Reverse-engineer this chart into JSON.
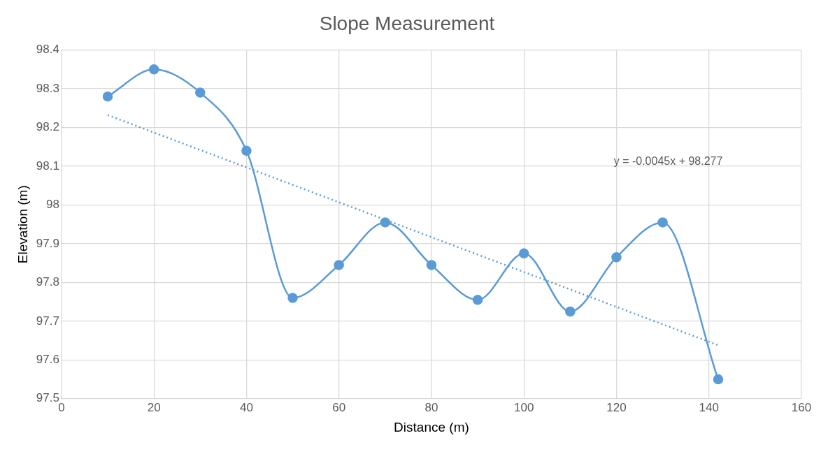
{
  "chart_data": {
    "type": "line",
    "title": "Slope Measurement",
    "xlabel": "Distance (m)",
    "ylabel": "Elevation (m)",
    "xlim": [
      0,
      160
    ],
    "xticks": [
      0,
      20,
      40,
      60,
      80,
      100,
      120,
      140,
      160
    ],
    "ylim": [
      97.5,
      98.4
    ],
    "yticks": [
      {
        "value": 97.5,
        "label": "97.5"
      },
      {
        "value": 97.6,
        "label": "97.6"
      },
      {
        "value": 97.7,
        "label": "97.7"
      },
      {
        "value": 97.8,
        "label": "97.8"
      },
      {
        "value": 97.9,
        "label": "97.9"
      },
      {
        "value": 98,
        "label": "98"
      },
      {
        "value": 98.1,
        "label": "98.1"
      },
      {
        "value": 98.2,
        "label": "98.2"
      },
      {
        "value": 98.3,
        "label": "98.3"
      },
      {
        "value": 98.4,
        "label": "98.4"
      }
    ],
    "grid": true,
    "legend": false,
    "series": [
      {
        "type": "line",
        "color": "#5b9bd5",
        "marker": "circle",
        "line_style": "solid",
        "x": [
          10,
          20,
          30,
          40,
          50,
          60,
          70,
          80,
          90,
          100,
          110,
          120,
          130,
          142
        ],
        "values": [
          98.28,
          98.35,
          98.29,
          98.14,
          97.76,
          97.845,
          97.955,
          97.845,
          97.755,
          97.875,
          97.725,
          97.865,
          97.955,
          97.55
        ]
      },
      {
        "type": "line",
        "color": "#5b9bd5",
        "marker": "none",
        "line_style": "dotted",
        "x": [
          10,
          142
        ],
        "values": [
          98.232,
          97.638
        ]
      }
    ],
    "annotations": [
      "y = -0.0045x + 98.277"
    ]
  }
}
